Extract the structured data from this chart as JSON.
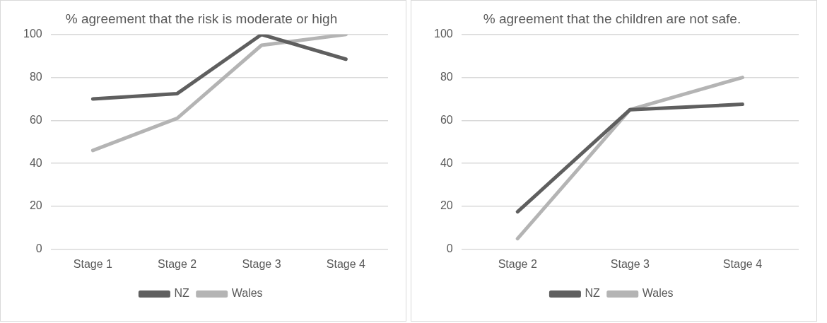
{
  "chart_data": [
    {
      "type": "line",
      "title": "% agreement that the risk is moderate or high",
      "categories": [
        "Stage 1",
        "Stage 2",
        "Stage 3",
        "Stage 4"
      ],
      "series": [
        {
          "name": "NZ",
          "color": "#5f5f5f",
          "values": [
            70,
            72.5,
            100,
            88.5
          ]
        },
        {
          "name": "Wales",
          "color": "#b4b4b4",
          "values": [
            46,
            61,
            95,
            100
          ]
        }
      ],
      "ylim": [
        0,
        100
      ],
      "yticks": [
        0,
        20,
        40,
        60,
        80,
        100
      ],
      "grid": "y",
      "legend": "bottom",
      "marker": "none"
    },
    {
      "type": "line",
      "title": "% agreement that the children are not safe.",
      "categories": [
        "Stage 2",
        "Stage 3",
        "Stage 4"
      ],
      "series": [
        {
          "name": "NZ",
          "color": "#5f5f5f",
          "values": [
            17.5,
            65,
            67.5
          ]
        },
        {
          "name": "Wales",
          "color": "#b4b4b4",
          "values": [
            5,
            65,
            80
          ]
        }
      ],
      "ylim": [
        0,
        100
      ],
      "yticks": [
        0,
        20,
        40,
        60,
        80,
        100
      ],
      "grid": "y",
      "legend": "bottom",
      "marker": "none"
    }
  ]
}
